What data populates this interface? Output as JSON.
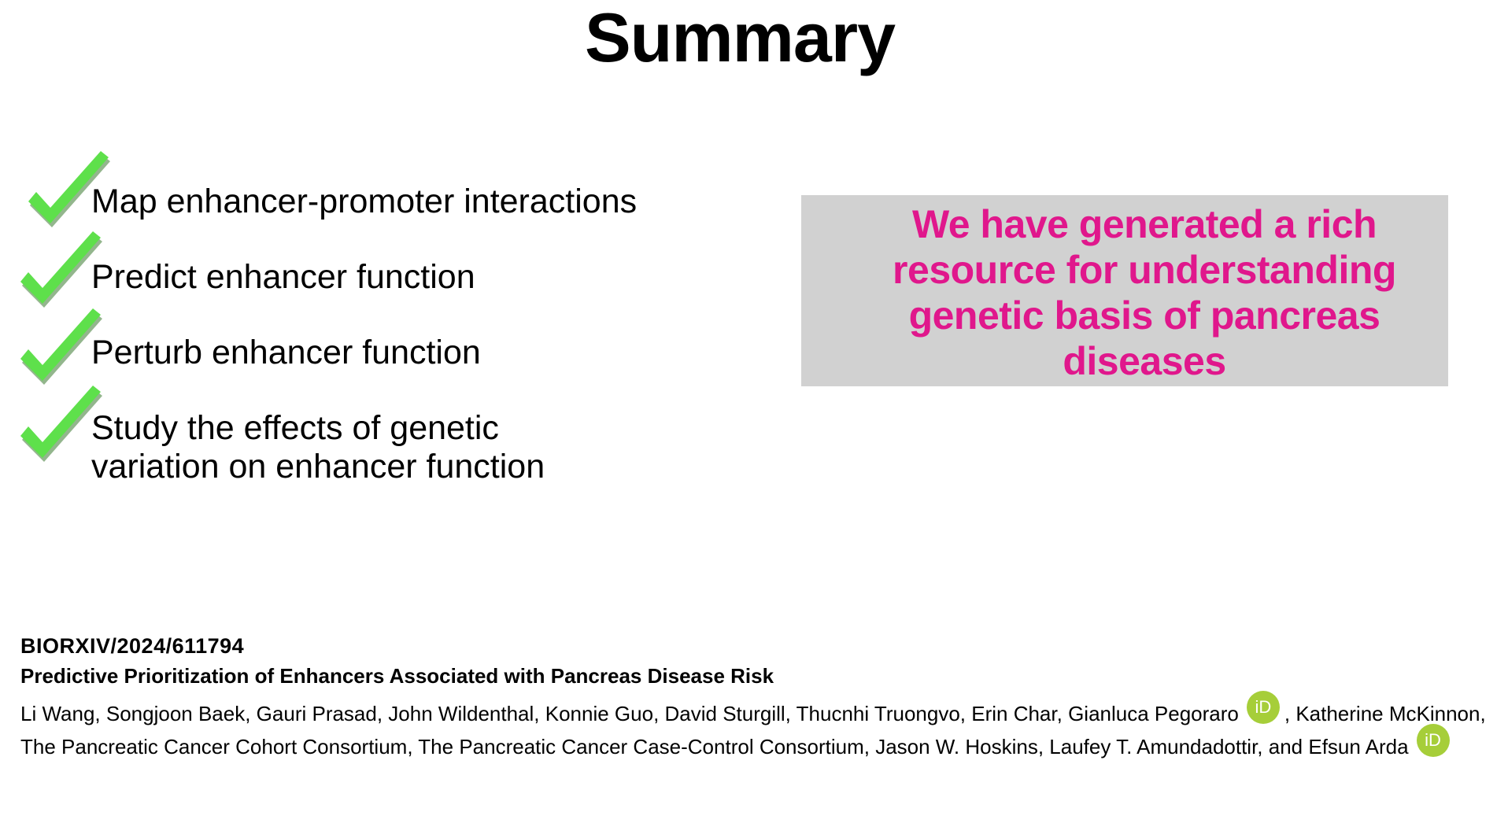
{
  "title": "Summary",
  "checklist": [
    {
      "lines": [
        "Map enhancer-promoter interactions"
      ]
    },
    {
      "lines": [
        "Predict enhancer function"
      ]
    },
    {
      "lines": [
        "Perturb enhancer function"
      ]
    },
    {
      "lines": [
        "Study the effects of genetic",
        "variation on enhancer function"
      ]
    }
  ],
  "highlight": {
    "lines": [
      "We have generated a rich",
      "resource for understanding",
      "genetic basis of pancreas",
      "diseases"
    ],
    "text_color": "#e0178c",
    "box_color": "#d1d1d1"
  },
  "check_color": "#5ee04b",
  "citation": {
    "id": "BIORXIV/2024/611794",
    "title": "Predictive Prioritization of Enhancers Associated with Pancreas Disease Risk",
    "authors_part1": "Li Wang, Songjoon Baek, Gauri Prasad, John Wildenthal, Konnie Guo, David Sturgill, Thucnhi Truongvo, Erin Char, Gianluca Pegoraro",
    "authors_part2": ", Katherine McKinnon, The Pancreatic Cancer Cohort Consortium, The Pancreatic Cancer Case-Control Consortium, Jason W. Hoskins, Laufey T. Amundadottir, and Efsun Arda",
    "orcid_label": "iD",
    "orcid_color": "#a6ce39"
  }
}
